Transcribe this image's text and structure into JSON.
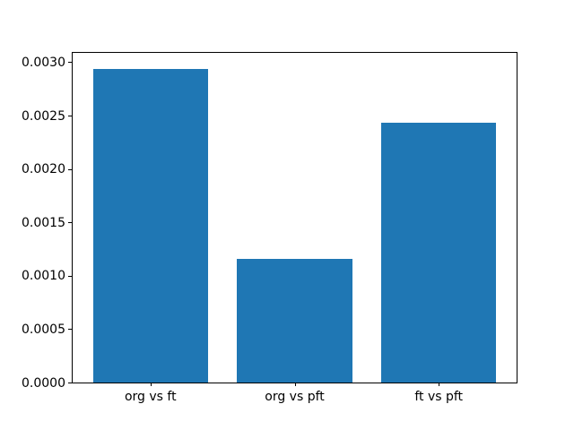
{
  "chart_data": {
    "type": "bar",
    "title": "",
    "xlabel": "",
    "ylabel": "",
    "categories": [
      "org vs ft",
      "org vs pft",
      "ft vs pft"
    ],
    "values": [
      0.00294,
      0.00116,
      0.00243
    ],
    "bar_color": "#1f77b4",
    "ylim": [
      0,
      0.003087
    ],
    "yticks": [
      {
        "value": 0.0,
        "label": "0.0000"
      },
      {
        "value": 0.0005,
        "label": "0.0005"
      },
      {
        "value": 0.001,
        "label": "0.0010"
      },
      {
        "value": 0.0015,
        "label": "0.0015"
      },
      {
        "value": 0.002,
        "label": "0.0020"
      },
      {
        "value": 0.0025,
        "label": "0.0025"
      },
      {
        "value": 0.003,
        "label": "0.0030"
      }
    ],
    "xlim_units": [
      -0.54,
      2.54
    ],
    "bar_width_units": 0.8,
    "grid": false,
    "legend": null,
    "spine_color": "#000000",
    "background_color": "#ffffff"
  }
}
